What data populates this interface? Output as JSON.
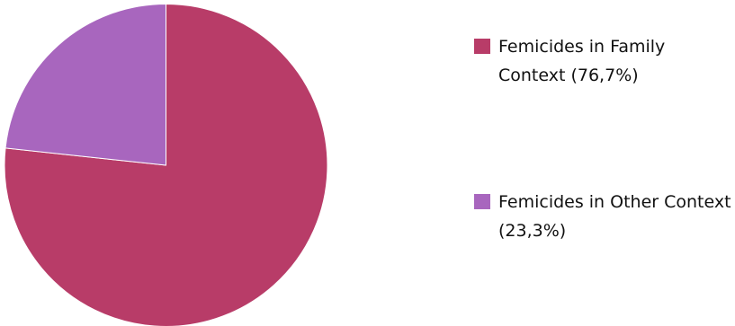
{
  "chart_data": {
    "type": "pie",
    "title": "",
    "slices": [
      {
        "label": "Femicides in Family Context (76,7%)",
        "value": 76.7,
        "color": "#b83c68"
      },
      {
        "label": "Femicides in Other Context (23,3%)",
        "value": 23.3,
        "color": "#a866be"
      }
    ],
    "legend_position": "right",
    "start_direction": "top",
    "direction": "clockwise"
  }
}
